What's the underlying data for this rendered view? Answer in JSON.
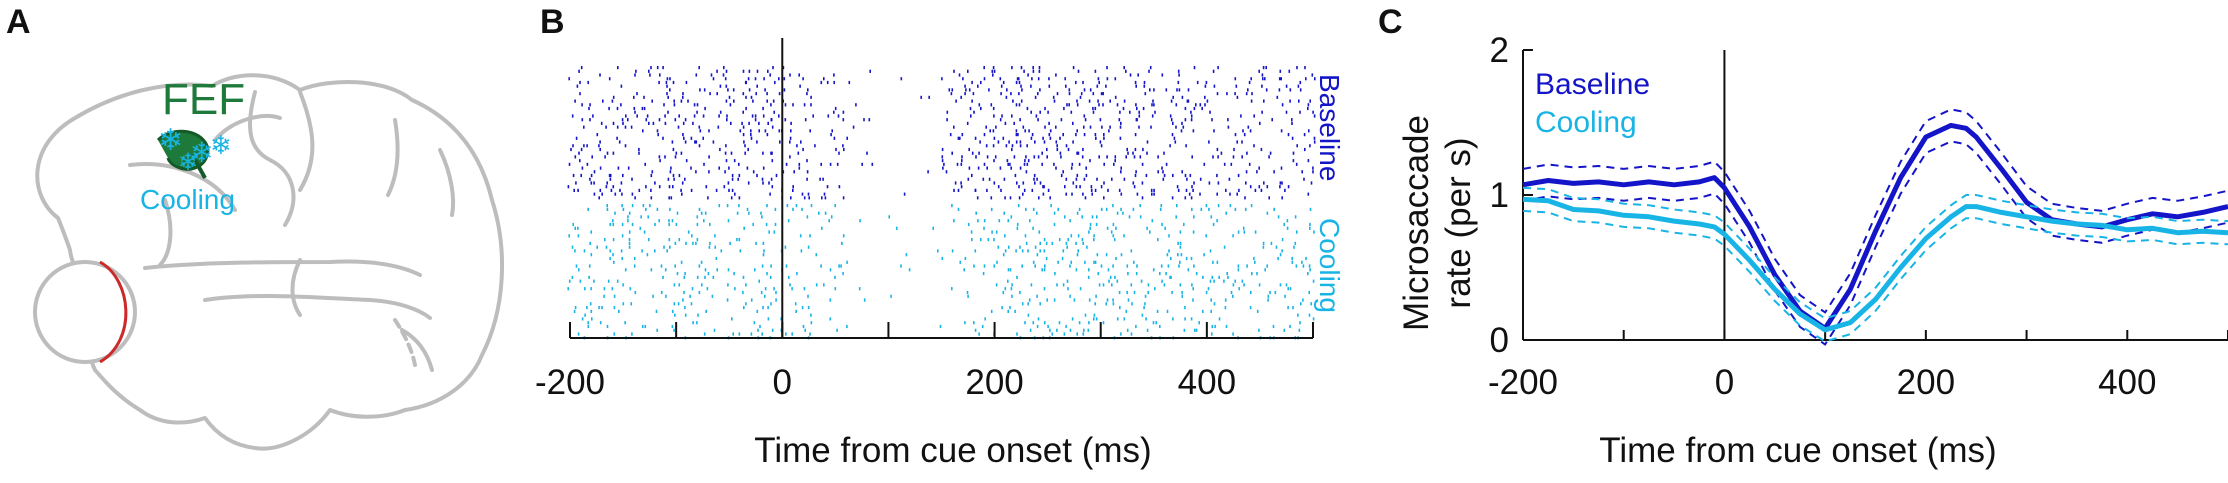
{
  "colors": {
    "baseline": "#1414c8",
    "cooling": "#19b4e6",
    "brain_outline": "#bdbdbd",
    "fef": "#1e7a3a",
    "eye_rim": "#cc2a2a",
    "axis": "#111111"
  },
  "panels": {
    "A": {
      "letter": "A",
      "fef_label": "FEF",
      "cooling_label": "Cooling",
      "icon": "snowflake-icon"
    },
    "B": {
      "letter": "B"
    },
    "C": {
      "letter": "C"
    }
  },
  "chart_data": [
    {
      "type": "raster",
      "panel": "B",
      "xlabel": "Time from cue onset (ms)",
      "xlim": [
        -200,
        500
      ],
      "xticks": [
        -200,
        0,
        200,
        400
      ],
      "xtick_labels": [
        "-200",
        "0",
        "200",
        "400"
      ],
      "vline_at": 0,
      "rows_per_condition": 36,
      "series": [
        {
          "name": "Baseline",
          "color_key": "baseline",
          "rate_profile": {
            "t": [
              -200,
              -100,
              0,
              20,
              50,
              80,
              110,
              140,
              160,
              200,
              250,
              300,
              400,
              500
            ],
            "density": [
              1.05,
              1.05,
              1.1,
              0.9,
              0.5,
              0.1,
              0.05,
              0.2,
              0.9,
              1.4,
              1.5,
              1.2,
              0.95,
              0.95
            ]
          }
        },
        {
          "name": "Cooling",
          "color_key": "cooling",
          "rate_profile": {
            "t": [
              -200,
              -100,
              0,
              20,
              50,
              80,
              110,
              140,
              160,
              200,
              250,
              300,
              400,
              500
            ],
            "density": [
              0.95,
              0.85,
              0.75,
              0.6,
              0.35,
              0.1,
              0.05,
              0.15,
              0.5,
              0.8,
              0.95,
              0.9,
              0.8,
              0.75
            ]
          }
        }
      ]
    },
    {
      "type": "line",
      "panel": "C",
      "xlabel": "Time from cue onset (ms)",
      "ylabel": "Microsaccade rate (per s)",
      "ylabel_lines": [
        "Microsaccade",
        "rate (per s)"
      ],
      "xlim": [
        -200,
        500
      ],
      "ylim": [
        0,
        2
      ],
      "xticks": [
        -200,
        0,
        200,
        400
      ],
      "xtick_labels": [
        "-200",
        "0",
        "200",
        "400"
      ],
      "yticks": [
        0,
        1,
        2
      ],
      "ytick_labels": [
        "0",
        "1",
        "2"
      ],
      "vline_at": 0,
      "legend": [
        "Baseline",
        "Cooling"
      ],
      "legend_position": "top-left",
      "x": [
        -200,
        -175,
        -150,
        -125,
        -100,
        -75,
        -50,
        -25,
        -10,
        0,
        25,
        50,
        75,
        100,
        125,
        150,
        175,
        200,
        225,
        240,
        250,
        275,
        300,
        325,
        350,
        375,
        400,
        425,
        450,
        475,
        500
      ],
      "series": [
        {
          "name": "Baseline",
          "color_key": "baseline",
          "values": [
            1.07,
            1.1,
            1.08,
            1.09,
            1.07,
            1.09,
            1.07,
            1.09,
            1.12,
            1.05,
            0.78,
            0.45,
            0.2,
            0.08,
            0.35,
            0.75,
            1.12,
            1.4,
            1.48,
            1.46,
            1.4,
            1.18,
            0.95,
            0.83,
            0.8,
            0.78,
            0.83,
            0.87,
            0.85,
            0.88,
            0.92
          ],
          "band": 0.11
        },
        {
          "name": "Cooling",
          "color_key": "cooling",
          "values": [
            0.97,
            0.96,
            0.9,
            0.89,
            0.86,
            0.85,
            0.82,
            0.8,
            0.78,
            0.73,
            0.55,
            0.35,
            0.18,
            0.07,
            0.12,
            0.28,
            0.5,
            0.7,
            0.85,
            0.92,
            0.92,
            0.88,
            0.85,
            0.82,
            0.8,
            0.79,
            0.76,
            0.77,
            0.74,
            0.75,
            0.74
          ],
          "band": 0.08
        }
      ]
    }
  ]
}
